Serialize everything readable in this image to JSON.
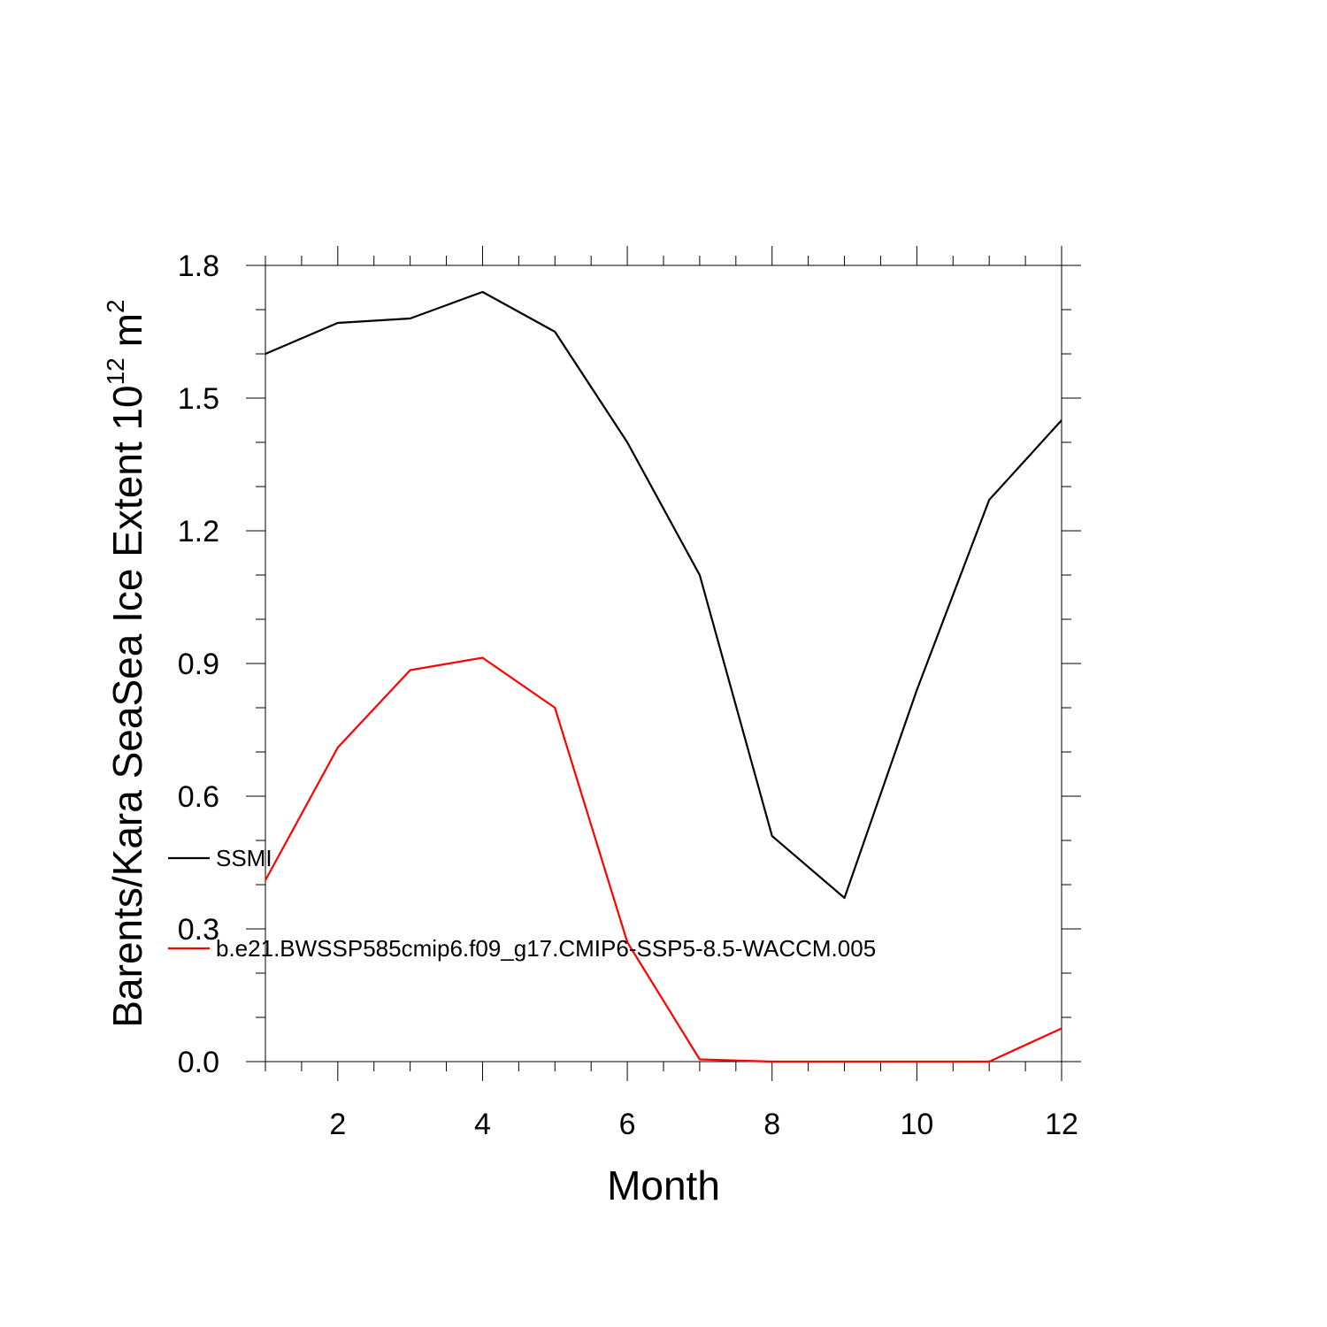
{
  "chart_data": {
    "type": "line",
    "title": "",
    "xlabel": "Month",
    "ylabel": "Barents/Kara SeaSea Ice Extent 10",
    "ylabel_superscript": "12",
    "ylabel_unit": "m",
    "ylabel_unit_superscript": "2",
    "xlim": [
      1,
      12
    ],
    "ylim": [
      0.0,
      1.8
    ],
    "x_ticks": [
      2,
      4,
      6,
      8,
      10,
      12
    ],
    "x_tick_labels": [
      "2",
      "4",
      "6",
      "8",
      "10",
      "12"
    ],
    "y_ticks": [
      0.0,
      0.3,
      0.6,
      0.9,
      1.2,
      1.5,
      1.8
    ],
    "y_tick_labels": [
      "0.0",
      "0.3",
      "0.6",
      "0.9",
      "1.2",
      "1.5",
      "1.8"
    ],
    "grid": false,
    "legend_placement": "left, inside plot",
    "x": [
      1,
      2,
      3,
      4,
      5,
      6,
      7,
      8,
      9,
      10,
      11,
      12
    ],
    "series": [
      {
        "name": "SSMI",
        "color": "#000000",
        "values": [
          1.6,
          1.67,
          1.68,
          1.74,
          1.65,
          1.4,
          1.1,
          0.51,
          0.37,
          0.84,
          1.27,
          1.45
        ]
      },
      {
        "name": "b.e21.BWSSP585cmip6.f09_g17.CMIP6-SSP5-8.5-WACCM.005",
        "color": "#ff0000",
        "values": [
          0.41,
          0.71,
          0.885,
          0.913,
          0.8,
          0.27,
          0.005,
          0.0,
          0.0,
          0.0,
          0.0,
          0.075
        ]
      }
    ]
  }
}
